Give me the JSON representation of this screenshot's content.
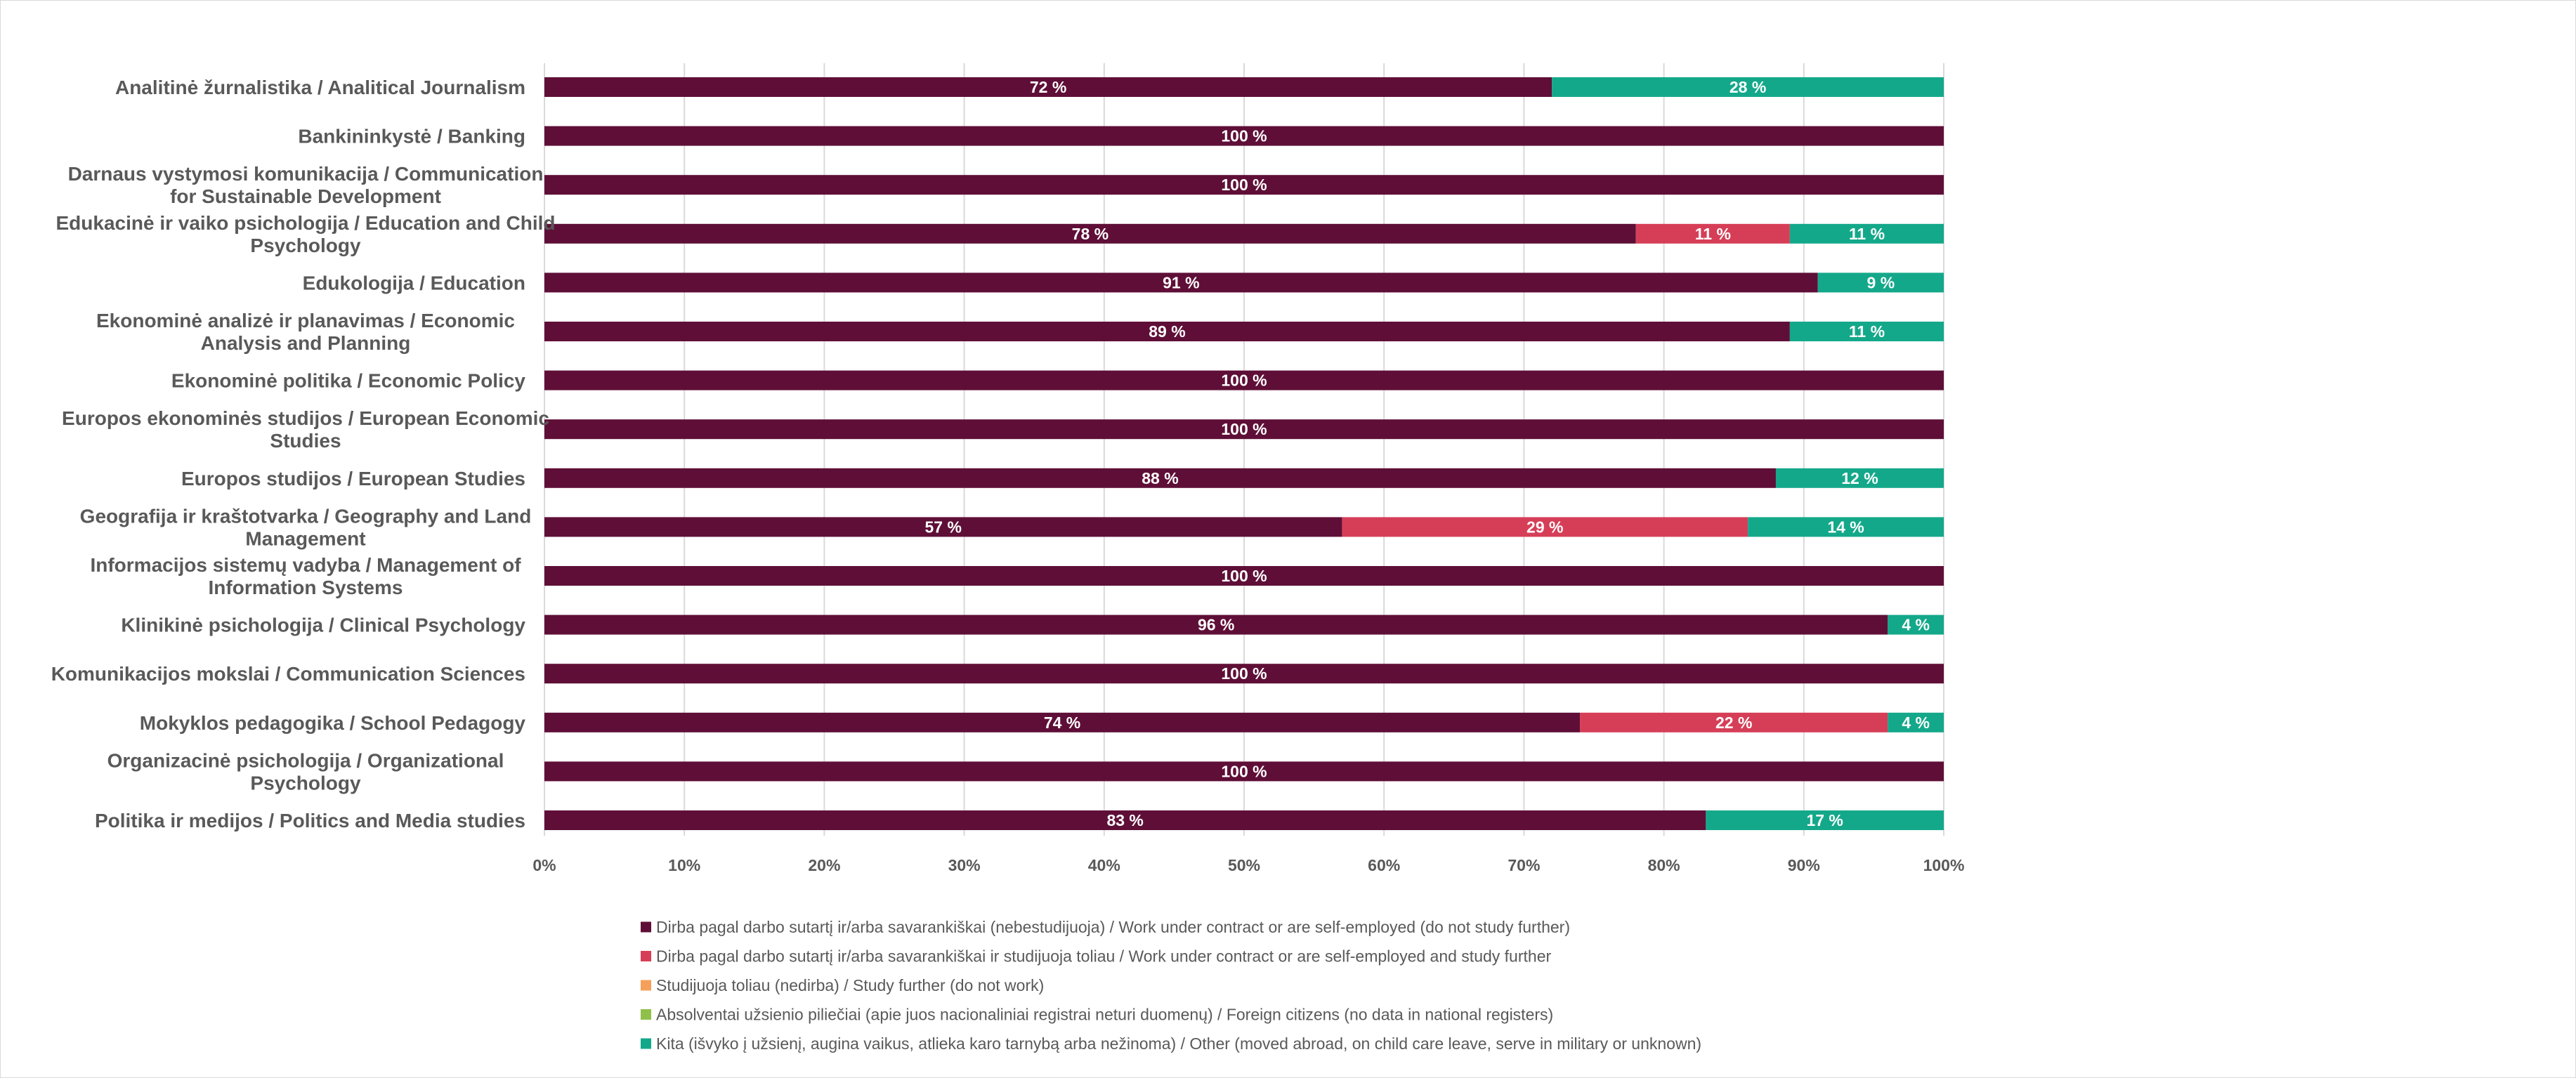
{
  "chart_data": {
    "type": "bar",
    "orientation": "horizontal",
    "stacked": true,
    "percent_stacked": true,
    "categories": [
      "Analitinė žurnalistika / Analitical Journalism",
      "Bankininkystė / Banking",
      "Darnaus vystymosi komunikacija / Communication for Sustainable Development",
      "Edukacinė ir vaiko psichologija / Education and Child Psychology",
      "Edukologija / Education",
      "Ekonominė analizė ir planavimas / Economic Analysis and Planning",
      "Ekonominė politika / Economic Policy",
      "Europos ekonominės studijos / European Economic Studies",
      "Europos studijos / European Studies",
      "Geografija ir kraštotvarka / Geography and Land Management",
      "Informacijos sistemų vadyba / Management of Information Systems",
      "Klinikinė psichologija / Clinical Psychology",
      "Komunikacijos mokslai / Communication Sciences",
      "Mokyklos pedagogika / School Pedagogy",
      "Organizacinė psichologija / Organizational Psychology",
      "Politika ir medijos / Politics and Media studies"
    ],
    "category_lines": [
      [
        "Analitinė žurnalistika / Analitical Journalism"
      ],
      [
        "Bankininkystė / Banking"
      ],
      [
        "Darnaus vystymosi komunikacija / Communication",
        "for Sustainable Development"
      ],
      [
        "Edukacinė ir vaiko psichologija / Education and Child",
        "Psychology"
      ],
      [
        "Edukologija / Education"
      ],
      [
        "Ekonominė analizė ir planavimas / Economic",
        "Analysis and Planning"
      ],
      [
        "Ekonominė politika / Economic Policy"
      ],
      [
        "Europos ekonominės studijos / European Economic",
        "Studies"
      ],
      [
        "Europos studijos / European Studies"
      ],
      [
        "Geografija ir kraštotvarka / Geography and Land",
        "Management"
      ],
      [
        "Informacijos sistemų vadyba / Management of",
        "Information Systems"
      ],
      [
        "Klinikinė psichologija / Clinical Psychology"
      ],
      [
        "Komunikacijos mokslai / Communication Sciences"
      ],
      [
        "Mokyklos pedagogika / School Pedagogy"
      ],
      [
        "Organizacinė psichologija / Organizational",
        "Psychology"
      ],
      [
        "Politika ir medijos / Politics and Media studies"
      ]
    ],
    "series": [
      {
        "name": "Dirba pagal darbo sutartį ir/arba savarankiškai (nebestudijuoja) / Work under contract or are self-employed (do not study further)",
        "color": "#5f0f37",
        "values": [
          72,
          100,
          100,
          78,
          91,
          89,
          100,
          100,
          88,
          57,
          100,
          96,
          100,
          74,
          100,
          83
        ]
      },
      {
        "name": "Dirba pagal darbo sutartį ir/arba savarankiškai  ir studijuoja toliau / Work under contract or are self-employed and study further",
        "color": "#d63e57",
        "values": [
          0,
          0,
          0,
          11,
          0,
          0,
          0,
          0,
          0,
          29,
          0,
          0,
          0,
          22,
          0,
          0
        ]
      },
      {
        "name": "Studijuoja toliau (nedirba) / Study further (do not work)",
        "color": "#f4a05a",
        "values": [
          0,
          0,
          0,
          0,
          0,
          0,
          0,
          0,
          0,
          0,
          0,
          0,
          0,
          0,
          0,
          0
        ]
      },
      {
        "name": "Absolventai užsienio piliečiai (apie juos nacionaliniai registrai neturi duomenų) / Foreign citizens (no data in national registers)",
        "color": "#8fc04a",
        "values": [
          0,
          0,
          0,
          0,
          0,
          0,
          0,
          0,
          0,
          0,
          0,
          0,
          0,
          0,
          0,
          0
        ]
      },
      {
        "name": "Kita (išvyko į užsienį, augina vaikus, atlieka karo tarnybą arba nežinoma) / Other (moved abroad, on child care leave, serve in military or unknown)",
        "color": "#14a88a",
        "values": [
          28,
          0,
          0,
          11,
          9,
          11,
          0,
          0,
          12,
          14,
          0,
          4,
          0,
          4,
          0,
          17
        ]
      }
    ],
    "data_label_suffix": " %",
    "xlim": [
      0,
      100
    ],
    "x_ticks": [
      "0%",
      "10%",
      "20%",
      "30%",
      "40%",
      "50%",
      "60%",
      "70%",
      "80%",
      "90%",
      "100%"
    ],
    "grid": true,
    "legend_position": "bottom",
    "title": "",
    "xlabel": "",
    "ylabel": ""
  }
}
